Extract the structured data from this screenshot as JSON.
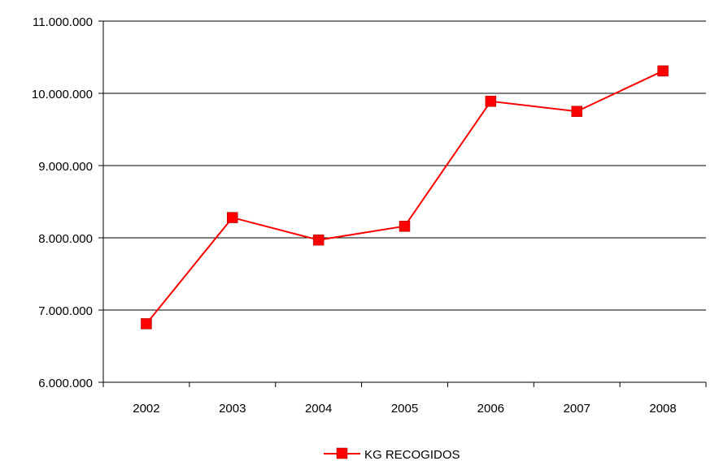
{
  "chart_data": {
    "type": "line",
    "title": "",
    "xlabel": "",
    "ylabel": "",
    "categories": [
      "2002",
      "2003",
      "2004",
      "2005",
      "2006",
      "2007",
      "2008"
    ],
    "series": [
      {
        "name": "KG RECOGIDOS",
        "values": [
          6810000,
          8280000,
          7970000,
          8160000,
          9890000,
          9750000,
          10310000
        ],
        "color": "#ff0000",
        "marker": "square"
      }
    ],
    "ylim": [
      6000000,
      11000000
    ],
    "yticks": [
      6000000,
      7000000,
      8000000,
      9000000,
      10000000,
      11000000
    ],
    "ytick_labels": [
      "6.000.000",
      "7.000.000",
      "8.000.000",
      "9.000.000",
      "10.000.000",
      "11.000.000"
    ],
    "grid": "horizontal",
    "legend": "bottom"
  }
}
